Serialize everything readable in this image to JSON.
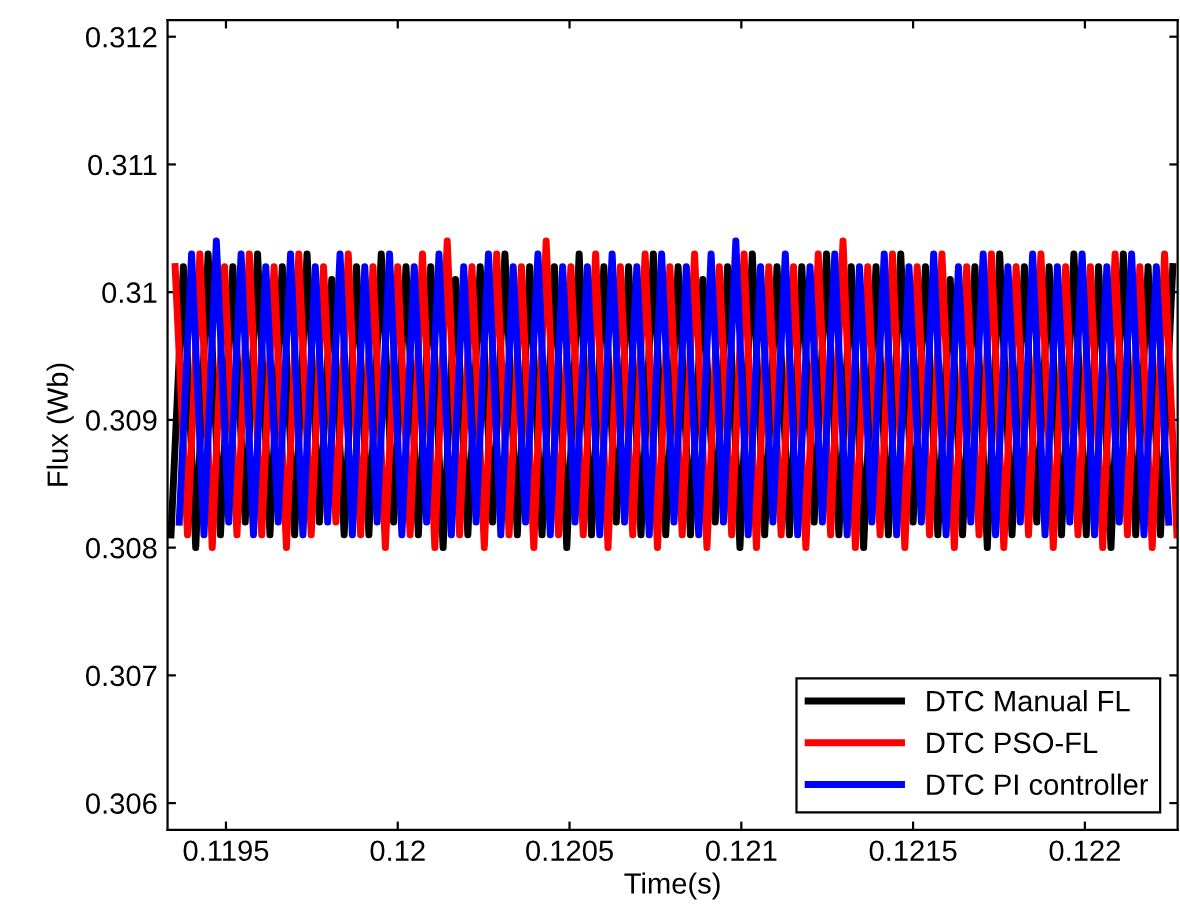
{
  "chart_data": {
    "type": "line",
    "xlabel": "Time(s)",
    "ylabel": "Flux (Wb)",
    "xlim": [
      0.11933,
      0.12227
    ],
    "ylim": [
      0.30579,
      0.31213
    ],
    "xticks": [
      0.1195,
      0.12,
      0.1205,
      0.121,
      0.1215,
      0.122
    ],
    "yticks": [
      0.306,
      0.307,
      0.308,
      0.309,
      0.31,
      0.311,
      0.312
    ],
    "grid": false,
    "legend": "bottom right",
    "marker": "none",
    "line_style": "solid",
    "series": [
      {
        "name": "DTC Manual FL",
        "color": "#000000",
        "x": [
          0.11934,
          0.119376,
          0.119412,
          0.119448,
          0.119484,
          0.11952,
          0.119556,
          0.119592,
          0.119628,
          0.119664,
          0.1197,
          0.119736,
          0.119772,
          0.119808,
          0.119844,
          0.11988,
          0.119916,
          0.119952,
          0.119988,
          0.120024,
          0.12006,
          0.120096,
          0.120132,
          0.120168,
          0.120204,
          0.12024,
          0.120276,
          0.120312,
          0.120348,
          0.120384,
          0.12042,
          0.120456,
          0.120492,
          0.120528,
          0.120564,
          0.1206,
          0.120636,
          0.120672,
          0.120708,
          0.120744,
          0.12078,
          0.120816,
          0.120852,
          0.120888,
          0.120924,
          0.12096,
          0.120996,
          0.121032,
          0.121068,
          0.121104,
          0.12114,
          0.121176,
          0.121212,
          0.121248,
          0.121284,
          0.12132,
          0.121356,
          0.121392,
          0.121428,
          0.121464,
          0.1215,
          0.121536,
          0.121572,
          0.121608,
          0.121644,
          0.12168,
          0.121716,
          0.121752,
          0.121788,
          0.121824,
          0.12186,
          0.121896,
          0.121932,
          0.121968,
          0.122004,
          0.12204,
          0.122076,
          0.122112,
          0.122148,
          0.122184,
          0.12222,
          0.122256
        ],
        "values": [
          0.3081,
          0.3102,
          0.308,
          0.3103,
          0.3081,
          0.3102,
          0.3082,
          0.3103,
          0.3081,
          0.3102,
          0.3081,
          0.3103,
          0.3082,
          0.3101,
          0.3081,
          0.3102,
          0.3081,
          0.3103,
          0.3082,
          0.3102,
          0.3081,
          0.3102,
          0.308,
          0.3101,
          0.3081,
          0.3102,
          0.3082,
          0.3103,
          0.3081,
          0.3102,
          0.3081,
          0.3102,
          0.308,
          0.3103,
          0.3081,
          0.3102,
          0.3082,
          0.3102,
          0.3081,
          0.3103,
          0.3081,
          0.3102,
          0.3081,
          0.3101,
          0.3082,
          0.3102,
          0.308,
          0.3103,
          0.3081,
          0.3102,
          0.3081,
          0.3102,
          0.3082,
          0.3103,
          0.3081,
          0.3102,
          0.308,
          0.3102,
          0.3081,
          0.3103,
          0.3082,
          0.3102,
          0.3081,
          0.3101,
          0.3081,
          0.3102,
          0.308,
          0.3103,
          0.3081,
          0.3102,
          0.3082,
          0.3102,
          0.3081,
          0.3103,
          0.3081,
          0.3102,
          0.308,
          0.3103,
          0.3081,
          0.3102,
          0.3081,
          0.3102
        ]
      },
      {
        "name": "DTC PSO-FL",
        "color": "#ff0000",
        "x": [
          0.119352,
          0.119388,
          0.119424,
          0.11946,
          0.119496,
          0.119532,
          0.119568,
          0.119604,
          0.11964,
          0.119676,
          0.119712,
          0.119748,
          0.119784,
          0.11982,
          0.119856,
          0.119892,
          0.119928,
          0.119964,
          0.12,
          0.120036,
          0.120072,
          0.120108,
          0.120144,
          0.12018,
          0.120216,
          0.120252,
          0.120288,
          0.120324,
          0.12036,
          0.120396,
          0.120432,
          0.120468,
          0.120504,
          0.12054,
          0.120576,
          0.120612,
          0.120648,
          0.120684,
          0.12072,
          0.120756,
          0.120792,
          0.120828,
          0.120864,
          0.1209,
          0.120936,
          0.120972,
          0.121008,
          0.121044,
          0.12108,
          0.121116,
          0.121152,
          0.121188,
          0.121224,
          0.12126,
          0.121296,
          0.121332,
          0.121368,
          0.121404,
          0.12144,
          0.121476,
          0.121512,
          0.121548,
          0.121584,
          0.12162,
          0.121656,
          0.121692,
          0.121728,
          0.121764,
          0.1218,
          0.121836,
          0.121872,
          0.121908,
          0.121944,
          0.12198,
          0.122016,
          0.122052,
          0.122088,
          0.122124,
          0.12216,
          0.122196,
          0.122232,
          0.122268
        ],
        "values": [
          0.3102,
          0.3081,
          0.3103,
          0.308,
          0.3102,
          0.3081,
          0.3103,
          0.3081,
          0.3102,
          0.308,
          0.3103,
          0.3081,
          0.3102,
          0.3082,
          0.3103,
          0.3081,
          0.3102,
          0.308,
          0.3102,
          0.3081,
          0.3103,
          0.308,
          0.3104,
          0.3081,
          0.3102,
          0.308,
          0.3103,
          0.3081,
          0.3102,
          0.308,
          0.3104,
          0.3081,
          0.3102,
          0.3081,
          0.3103,
          0.308,
          0.3102,
          0.3081,
          0.3103,
          0.308,
          0.3102,
          0.3081,
          0.3103,
          0.308,
          0.3102,
          0.3081,
          0.3103,
          0.308,
          0.3102,
          0.3081,
          0.3102,
          0.308,
          0.3103,
          0.3081,
          0.3104,
          0.308,
          0.3102,
          0.3081,
          0.3103,
          0.308,
          0.3102,
          0.3081,
          0.3103,
          0.308,
          0.3102,
          0.3081,
          0.3103,
          0.308,
          0.3102,
          0.3081,
          0.3103,
          0.308,
          0.3102,
          0.3081,
          0.3102,
          0.308,
          0.3103,
          0.3081,
          0.3102,
          0.308,
          0.3103,
          0.3081
        ]
      },
      {
        "name": "DTC PI controller",
        "color": "#0000ff",
        "x": [
          0.119364,
          0.1194,
          0.119436,
          0.119472,
          0.119508,
          0.119544,
          0.11958,
          0.119616,
          0.119652,
          0.119688,
          0.119724,
          0.11976,
          0.119796,
          0.119832,
          0.119868,
          0.119904,
          0.11994,
          0.119976,
          0.120012,
          0.120048,
          0.120084,
          0.12012,
          0.120156,
          0.120192,
          0.120228,
          0.120264,
          0.1203,
          0.120336,
          0.120372,
          0.120408,
          0.120444,
          0.12048,
          0.120516,
          0.120552,
          0.120588,
          0.120624,
          0.12066,
          0.120696,
          0.120732,
          0.120768,
          0.120804,
          0.12084,
          0.120876,
          0.120912,
          0.120948,
          0.120984,
          0.12102,
          0.121056,
          0.121092,
          0.121128,
          0.121164,
          0.1212,
          0.121236,
          0.121272,
          0.121308,
          0.121344,
          0.12138,
          0.121416,
          0.121452,
          0.121488,
          0.121524,
          0.12156,
          0.121596,
          0.121632,
          0.121668,
          0.121704,
          0.12174,
          0.121776,
          0.121812,
          0.121848,
          0.121884,
          0.12192,
          0.121956,
          0.121992,
          0.122028,
          0.122064,
          0.1221,
          0.122136,
          0.122172,
          0.122208,
          0.122244
        ],
        "values": [
          0.3082,
          0.3103,
          0.3081,
          0.3104,
          0.3082,
          0.3103,
          0.3081,
          0.3102,
          0.3082,
          0.3103,
          0.3081,
          0.3102,
          0.3082,
          0.3103,
          0.3081,
          0.3102,
          0.3082,
          0.3103,
          0.3081,
          0.3102,
          0.3082,
          0.3103,
          0.3081,
          0.3102,
          0.3082,
          0.3103,
          0.3081,
          0.3102,
          0.3082,
          0.3103,
          0.3081,
          0.3102,
          0.3082,
          0.3102,
          0.3081,
          0.3103,
          0.3082,
          0.3102,
          0.3081,
          0.3103,
          0.3082,
          0.3102,
          0.3081,
          0.3103,
          0.3082,
          0.3104,
          0.3081,
          0.3102,
          0.3082,
          0.3103,
          0.3081,
          0.3102,
          0.3082,
          0.3103,
          0.3081,
          0.3102,
          0.3082,
          0.3103,
          0.3081,
          0.3102,
          0.3082,
          0.3103,
          0.3081,
          0.3102,
          0.3082,
          0.3103,
          0.3081,
          0.3102,
          0.3082,
          0.3103,
          0.3081,
          0.3102,
          0.3082,
          0.3103,
          0.3081,
          0.3102,
          0.3082,
          0.3103,
          0.3081,
          0.3102,
          0.3082
        ]
      }
    ]
  }
}
